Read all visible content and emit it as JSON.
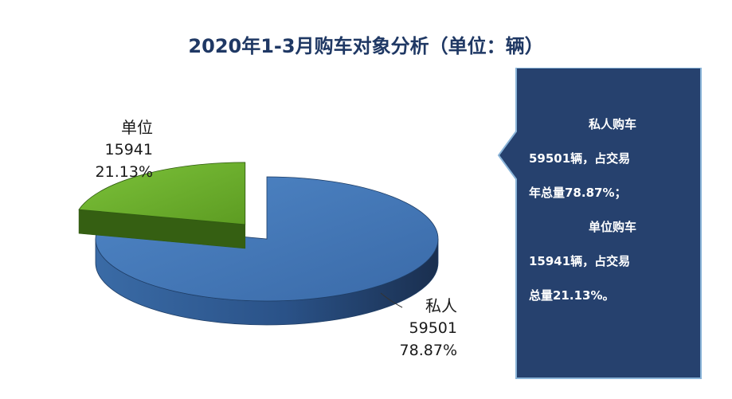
{
  "chart_data": {
    "type": "pie",
    "title": "2020年1-3月购车对象分析（单位：辆）",
    "slices": [
      {
        "name": "私人",
        "value": 59501,
        "percent": "78.87%",
        "color": "#3d70ad"
      },
      {
        "name": "单位",
        "value": 15941,
        "percent": "21.13%",
        "color": "#6fb32a"
      }
    ]
  },
  "callout": {
    "line1": "私人购车",
    "line2": "59501辆，占交易",
    "line3": "年总量78.87%；",
    "line4": "单位购车",
    "line5": "15941辆，占交易",
    "line6": "总量21.13%。"
  }
}
